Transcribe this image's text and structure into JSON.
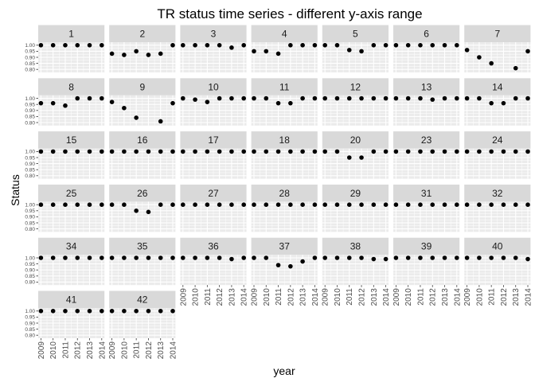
{
  "chart_data": {
    "type": "scatter",
    "title": "TR status time series - different y-axis range",
    "xlabel": "year",
    "ylabel": "Status",
    "x": [
      2009,
      2010,
      2011,
      2012,
      2013,
      2014
    ],
    "x_tick_labels": [
      "2009",
      "2010",
      "2011",
      "2012",
      "2013",
      "2014"
    ],
    "ylim": [
      0.8,
      1.0
    ],
    "y_ticks": [
      0.8,
      0.85,
      0.9,
      0.95,
      1.0
    ],
    "y_tick_labels": [
      "0.80",
      "0.85",
      "0.90",
      "0.95",
      "1.00"
    ],
    "panel_background": "#ebebeb",
    "strip_background": "#d9d9d9",
    "grid_color": "#ffffff",
    "point_color": "#000000",
    "facets": [
      {
        "label": "1",
        "values": [
          1.0,
          1.0,
          1.0,
          1.0,
          1.0,
          1.0
        ]
      },
      {
        "label": "2",
        "values": [
          0.93,
          0.92,
          0.95,
          0.92,
          0.93,
          1.0
        ]
      },
      {
        "label": "3",
        "values": [
          1.0,
          1.0,
          1.0,
          1.0,
          0.98,
          1.0
        ]
      },
      {
        "label": "4",
        "values": [
          0.95,
          0.95,
          0.93,
          1.0,
          1.0,
          1.0
        ]
      },
      {
        "label": "5",
        "values": [
          1.0,
          1.0,
          0.96,
          0.95,
          1.0,
          1.0
        ]
      },
      {
        "label": "6",
        "values": [
          1.0,
          1.0,
          1.0,
          1.0,
          1.0,
          1.0
        ]
      },
      {
        "label": "7",
        "values": [
          0.96,
          0.9,
          0.85,
          null,
          0.81,
          0.95
        ]
      },
      {
        "label": "8",
        "values": [
          0.96,
          0.96,
          0.94,
          1.0,
          1.0,
          1.0
        ]
      },
      {
        "label": "9",
        "values": [
          0.97,
          0.92,
          0.84,
          null,
          0.81,
          0.96
        ]
      },
      {
        "label": "10",
        "values": [
          1.0,
          0.99,
          0.97,
          1.0,
          1.0,
          1.0
        ]
      },
      {
        "label": "11",
        "values": [
          1.0,
          1.0,
          0.96,
          0.96,
          1.0,
          1.0
        ]
      },
      {
        "label": "12",
        "values": [
          1.0,
          1.0,
          1.0,
          1.0,
          1.0,
          1.0
        ]
      },
      {
        "label": "13",
        "values": [
          1.0,
          1.0,
          1.0,
          0.99,
          1.0,
          1.0
        ]
      },
      {
        "label": "14",
        "values": [
          1.0,
          1.0,
          0.96,
          0.96,
          1.0,
          1.0
        ]
      },
      {
        "label": "15",
        "values": [
          1.0,
          1.0,
          1.0,
          1.0,
          1.0,
          1.0
        ]
      },
      {
        "label": "16",
        "values": [
          1.0,
          1.0,
          1.0,
          1.0,
          1.0,
          1.0
        ]
      },
      {
        "label": "17",
        "values": [
          1.0,
          1.0,
          1.0,
          1.0,
          1.0,
          1.0
        ]
      },
      {
        "label": "18",
        "values": [
          1.0,
          1.0,
          1.0,
          1.0,
          1.0,
          1.0
        ]
      },
      {
        "label": "20",
        "values": [
          1.0,
          1.0,
          0.95,
          0.95,
          1.0,
          1.0
        ]
      },
      {
        "label": "23",
        "values": [
          1.0,
          1.0,
          1.0,
          1.0,
          1.0,
          1.0
        ]
      },
      {
        "label": "24",
        "values": [
          1.0,
          1.0,
          1.0,
          1.0,
          1.0,
          1.0
        ]
      },
      {
        "label": "25",
        "values": [
          1.0,
          1.0,
          1.0,
          1.0,
          1.0,
          1.0
        ]
      },
      {
        "label": "26",
        "values": [
          1.0,
          1.0,
          0.95,
          0.94,
          1.0,
          1.0
        ]
      },
      {
        "label": "27",
        "values": [
          1.0,
          1.0,
          1.0,
          1.0,
          1.0,
          1.0
        ]
      },
      {
        "label": "28",
        "values": [
          1.0,
          1.0,
          1.0,
          1.0,
          1.0,
          1.0
        ]
      },
      {
        "label": "29",
        "values": [
          1.0,
          1.0,
          1.0,
          1.0,
          1.0,
          1.0
        ]
      },
      {
        "label": "31",
        "values": [
          1.0,
          1.0,
          1.0,
          1.0,
          1.0,
          1.0
        ]
      },
      {
        "label": "32",
        "values": [
          1.0,
          1.0,
          1.0,
          1.0,
          1.0,
          1.0
        ]
      },
      {
        "label": "34",
        "values": [
          1.0,
          1.0,
          1.0,
          1.0,
          1.0,
          1.0
        ]
      },
      {
        "label": "35",
        "values": [
          1.0,
          1.0,
          1.0,
          1.0,
          1.0,
          1.0
        ]
      },
      {
        "label": "36",
        "values": [
          1.0,
          1.0,
          1.0,
          1.0,
          0.99,
          1.0
        ]
      },
      {
        "label": "37",
        "values": [
          1.0,
          1.0,
          0.94,
          0.93,
          0.97,
          1.0
        ]
      },
      {
        "label": "38",
        "values": [
          1.0,
          1.0,
          1.0,
          1.0,
          0.99,
          0.99
        ]
      },
      {
        "label": "39",
        "values": [
          1.0,
          1.0,
          1.0,
          1.0,
          1.0,
          1.0
        ]
      },
      {
        "label": "40",
        "values": [
          1.0,
          1.0,
          1.0,
          1.0,
          1.0,
          0.99
        ]
      },
      {
        "label": "41",
        "values": [
          1.0,
          1.0,
          1.0,
          1.0,
          1.0,
          1.0
        ]
      },
      {
        "label": "42",
        "values": [
          1.0,
          1.0,
          1.0,
          1.0,
          1.0,
          1.0
        ]
      }
    ]
  }
}
